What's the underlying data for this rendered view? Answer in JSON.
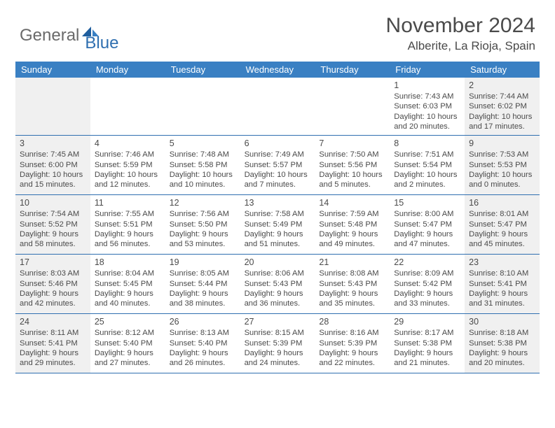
{
  "logo": {
    "general": "General",
    "blue": "Blue"
  },
  "title": "November 2024",
  "location": "Alberite, La Rioja, Spain",
  "colors": {
    "header_bar": "#3a80c3",
    "rule": "#2f6fb0",
    "shaded": "#f0f0f0",
    "text": "#4a4a4a",
    "logo_gray": "#6a6a6a",
    "logo_blue": "#2f6fb0",
    "background": "#ffffff"
  },
  "weekdays": [
    "Sunday",
    "Monday",
    "Tuesday",
    "Wednesday",
    "Thursday",
    "Friday",
    "Saturday"
  ],
  "weeks": [
    [
      {
        "blank": true,
        "shaded": true
      },
      {
        "blank": true
      },
      {
        "blank": true
      },
      {
        "blank": true
      },
      {
        "blank": true
      },
      {
        "day": "1",
        "sunrise": "Sunrise: 7:43 AM",
        "sunset": "Sunset: 6:03 PM",
        "daylight1": "Daylight: 10 hours",
        "daylight2": "and 20 minutes."
      },
      {
        "day": "2",
        "shaded": true,
        "sunrise": "Sunrise: 7:44 AM",
        "sunset": "Sunset: 6:02 PM",
        "daylight1": "Daylight: 10 hours",
        "daylight2": "and 17 minutes."
      }
    ],
    [
      {
        "day": "3",
        "shaded": true,
        "sunrise": "Sunrise: 7:45 AM",
        "sunset": "Sunset: 6:00 PM",
        "daylight1": "Daylight: 10 hours",
        "daylight2": "and 15 minutes."
      },
      {
        "day": "4",
        "sunrise": "Sunrise: 7:46 AM",
        "sunset": "Sunset: 5:59 PM",
        "daylight1": "Daylight: 10 hours",
        "daylight2": "and 12 minutes."
      },
      {
        "day": "5",
        "sunrise": "Sunrise: 7:48 AM",
        "sunset": "Sunset: 5:58 PM",
        "daylight1": "Daylight: 10 hours",
        "daylight2": "and 10 minutes."
      },
      {
        "day": "6",
        "sunrise": "Sunrise: 7:49 AM",
        "sunset": "Sunset: 5:57 PM",
        "daylight1": "Daylight: 10 hours",
        "daylight2": "and 7 minutes."
      },
      {
        "day": "7",
        "sunrise": "Sunrise: 7:50 AM",
        "sunset": "Sunset: 5:56 PM",
        "daylight1": "Daylight: 10 hours",
        "daylight2": "and 5 minutes."
      },
      {
        "day": "8",
        "sunrise": "Sunrise: 7:51 AM",
        "sunset": "Sunset: 5:54 PM",
        "daylight1": "Daylight: 10 hours",
        "daylight2": "and 2 minutes."
      },
      {
        "day": "9",
        "shaded": true,
        "sunrise": "Sunrise: 7:53 AM",
        "sunset": "Sunset: 5:53 PM",
        "daylight1": "Daylight: 10 hours",
        "daylight2": "and 0 minutes."
      }
    ],
    [
      {
        "day": "10",
        "shaded": true,
        "sunrise": "Sunrise: 7:54 AM",
        "sunset": "Sunset: 5:52 PM",
        "daylight1": "Daylight: 9 hours",
        "daylight2": "and 58 minutes."
      },
      {
        "day": "11",
        "sunrise": "Sunrise: 7:55 AM",
        "sunset": "Sunset: 5:51 PM",
        "daylight1": "Daylight: 9 hours",
        "daylight2": "and 56 minutes."
      },
      {
        "day": "12",
        "sunrise": "Sunrise: 7:56 AM",
        "sunset": "Sunset: 5:50 PM",
        "daylight1": "Daylight: 9 hours",
        "daylight2": "and 53 minutes."
      },
      {
        "day": "13",
        "sunrise": "Sunrise: 7:58 AM",
        "sunset": "Sunset: 5:49 PM",
        "daylight1": "Daylight: 9 hours",
        "daylight2": "and 51 minutes."
      },
      {
        "day": "14",
        "sunrise": "Sunrise: 7:59 AM",
        "sunset": "Sunset: 5:48 PM",
        "daylight1": "Daylight: 9 hours",
        "daylight2": "and 49 minutes."
      },
      {
        "day": "15",
        "sunrise": "Sunrise: 8:00 AM",
        "sunset": "Sunset: 5:47 PM",
        "daylight1": "Daylight: 9 hours",
        "daylight2": "and 47 minutes."
      },
      {
        "day": "16",
        "shaded": true,
        "sunrise": "Sunrise: 8:01 AM",
        "sunset": "Sunset: 5:47 PM",
        "daylight1": "Daylight: 9 hours",
        "daylight2": "and 45 minutes."
      }
    ],
    [
      {
        "day": "17",
        "shaded": true,
        "sunrise": "Sunrise: 8:03 AM",
        "sunset": "Sunset: 5:46 PM",
        "daylight1": "Daylight: 9 hours",
        "daylight2": "and 42 minutes."
      },
      {
        "day": "18",
        "sunrise": "Sunrise: 8:04 AM",
        "sunset": "Sunset: 5:45 PM",
        "daylight1": "Daylight: 9 hours",
        "daylight2": "and 40 minutes."
      },
      {
        "day": "19",
        "sunrise": "Sunrise: 8:05 AM",
        "sunset": "Sunset: 5:44 PM",
        "daylight1": "Daylight: 9 hours",
        "daylight2": "and 38 minutes."
      },
      {
        "day": "20",
        "sunrise": "Sunrise: 8:06 AM",
        "sunset": "Sunset: 5:43 PM",
        "daylight1": "Daylight: 9 hours",
        "daylight2": "and 36 minutes."
      },
      {
        "day": "21",
        "sunrise": "Sunrise: 8:08 AM",
        "sunset": "Sunset: 5:43 PM",
        "daylight1": "Daylight: 9 hours",
        "daylight2": "and 35 minutes."
      },
      {
        "day": "22",
        "sunrise": "Sunrise: 8:09 AM",
        "sunset": "Sunset: 5:42 PM",
        "daylight1": "Daylight: 9 hours",
        "daylight2": "and 33 minutes."
      },
      {
        "day": "23",
        "shaded": true,
        "sunrise": "Sunrise: 8:10 AM",
        "sunset": "Sunset: 5:41 PM",
        "daylight1": "Daylight: 9 hours",
        "daylight2": "and 31 minutes."
      }
    ],
    [
      {
        "day": "24",
        "shaded": true,
        "sunrise": "Sunrise: 8:11 AM",
        "sunset": "Sunset: 5:41 PM",
        "daylight1": "Daylight: 9 hours",
        "daylight2": "and 29 minutes."
      },
      {
        "day": "25",
        "sunrise": "Sunrise: 8:12 AM",
        "sunset": "Sunset: 5:40 PM",
        "daylight1": "Daylight: 9 hours",
        "daylight2": "and 27 minutes."
      },
      {
        "day": "26",
        "sunrise": "Sunrise: 8:13 AM",
        "sunset": "Sunset: 5:40 PM",
        "daylight1": "Daylight: 9 hours",
        "daylight2": "and 26 minutes."
      },
      {
        "day": "27",
        "sunrise": "Sunrise: 8:15 AM",
        "sunset": "Sunset: 5:39 PM",
        "daylight1": "Daylight: 9 hours",
        "daylight2": "and 24 minutes."
      },
      {
        "day": "28",
        "sunrise": "Sunrise: 8:16 AM",
        "sunset": "Sunset: 5:39 PM",
        "daylight1": "Daylight: 9 hours",
        "daylight2": "and 22 minutes."
      },
      {
        "day": "29",
        "sunrise": "Sunrise: 8:17 AM",
        "sunset": "Sunset: 5:38 PM",
        "daylight1": "Daylight: 9 hours",
        "daylight2": "and 21 minutes."
      },
      {
        "day": "30",
        "shaded": true,
        "sunrise": "Sunrise: 8:18 AM",
        "sunset": "Sunset: 5:38 PM",
        "daylight1": "Daylight: 9 hours",
        "daylight2": "and 20 minutes."
      }
    ]
  ]
}
